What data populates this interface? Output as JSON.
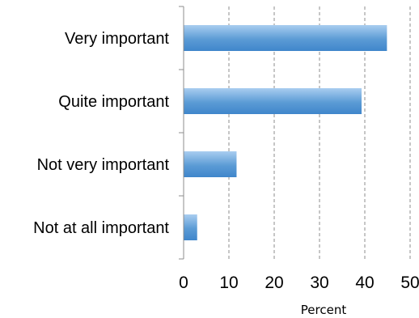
{
  "chart_data": {
    "type": "bar",
    "orientation": "horizontal",
    "categories": [
      "Very important",
      "Quite important",
      "Not very important",
      "Not at all important"
    ],
    "values": [
      44.8,
      39.2,
      11.6,
      2.9
    ],
    "xlabel": "Percent",
    "xlim": [
      0,
      50
    ],
    "xticks": [
      0,
      10,
      20,
      30,
      40,
      50
    ],
    "grid": "vertical-dashed",
    "bar_color": "#5b9bd5",
    "bar_gradient": [
      "#a9cdf0",
      "#5b9bd5",
      "#3f86cb"
    ]
  }
}
